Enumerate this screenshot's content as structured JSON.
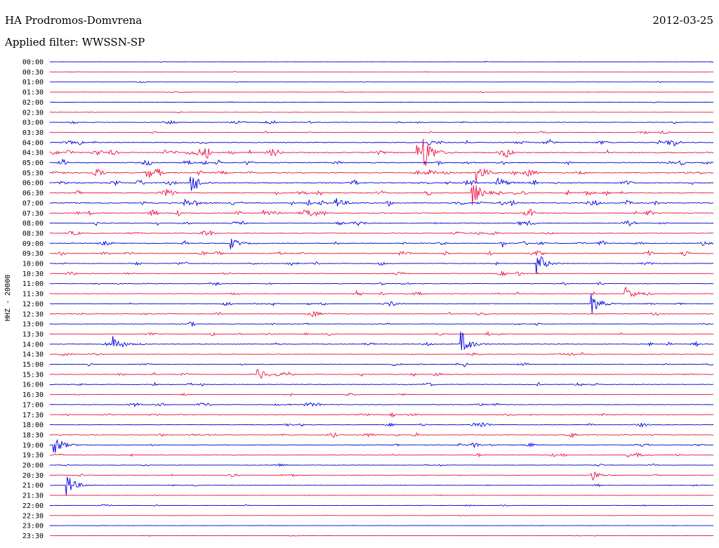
{
  "header": {
    "station": "HA Prodromos-Domvrena",
    "date": "2012-03-25",
    "filter": "Applied filter: WWSSN-SP"
  },
  "chart_data": {
    "type": "line",
    "title": "HA Prodromos-Domvrena",
    "ylabel": "HHZ - 20000",
    "colors": {
      "odd_trace": "#0000dd",
      "even_trace": "#ee1144"
    },
    "rows": [
      "00:00",
      "00:30",
      "01:00",
      "01:30",
      "02:00",
      "02:30",
      "03:00",
      "03:30",
      "04:00",
      "04:30",
      "05:00",
      "05:30",
      "06:00",
      "06:30",
      "07:00",
      "07:30",
      "08:00",
      "08:30",
      "09:00",
      "09:30",
      "10:00",
      "10:30",
      "11:00",
      "11:30",
      "12:00",
      "12:30",
      "13:00",
      "13:30",
      "14:00",
      "14:30",
      "15:00",
      "15:30",
      "16:00",
      "16:30",
      "17:00",
      "17:30",
      "18:00",
      "18:30",
      "19:00",
      "19:30",
      "20:00",
      "20:30",
      "21:00",
      "21:30",
      "22:00",
      "22:30",
      "23:00",
      "23:30"
    ],
    "noise_level": [
      0.3,
      0.3,
      0.4,
      0.4,
      0.4,
      0.5,
      1,
      0.8,
      1.4,
      1.8,
      1.5,
      1.8,
      1.4,
      1.5,
      1.6,
      1.6,
      1.2,
      1,
      1.4,
      1.4,
      1,
      0.9,
      1,
      1,
      1,
      1,
      0.8,
      1,
      1,
      0.8,
      1,
      1,
      0.9,
      0.7,
      1,
      1,
      0.9,
      1.2,
      1,
      1,
      0.8,
      0.8,
      0.6,
      0.4,
      0.6,
      0.3,
      0.3,
      0.4
    ],
    "events": [
      {
        "row": "04:00",
        "minute": 17.1,
        "amplitude": 4
      },
      {
        "row": "04:30",
        "minute": 16.6,
        "amplitude": 12
      },
      {
        "row": "04:30",
        "minute": 16.9,
        "amplitude": 22
      },
      {
        "row": "05:30",
        "minute": 19.3,
        "amplitude": 14
      },
      {
        "row": "06:00",
        "minute": 6.4,
        "amplitude": 12
      },
      {
        "row": "06:00",
        "minute": 20.2,
        "amplitude": 10
      },
      {
        "row": "06:30",
        "minute": 19.1,
        "amplitude": 18
      },
      {
        "row": "07:00",
        "minute": 6.1,
        "amplitude": 6
      },
      {
        "row": "07:00",
        "minute": 12.9,
        "amplitude": 8
      },
      {
        "row": "09:00",
        "minute": 8.2,
        "amplitude": 8
      },
      {
        "row": "10:00",
        "minute": 22.0,
        "amplitude": 16
      },
      {
        "row": "11:30",
        "minute": 26.0,
        "amplitude": 12
      },
      {
        "row": "12:00",
        "minute": 24.5,
        "amplitude": 14
      },
      {
        "row": "14:00",
        "minute": 2.9,
        "amplitude": 12
      },
      {
        "row": "14:00",
        "minute": 18.6,
        "amplitude": 18
      },
      {
        "row": "15:30",
        "minute": 9.4,
        "amplitude": 10
      },
      {
        "row": "19:00",
        "minute": 0.2,
        "amplitude": 16
      },
      {
        "row": "20:30",
        "minute": 24.5,
        "amplitude": 8
      },
      {
        "row": "21:00",
        "minute": 0.8,
        "amplitude": 16
      }
    ]
  }
}
